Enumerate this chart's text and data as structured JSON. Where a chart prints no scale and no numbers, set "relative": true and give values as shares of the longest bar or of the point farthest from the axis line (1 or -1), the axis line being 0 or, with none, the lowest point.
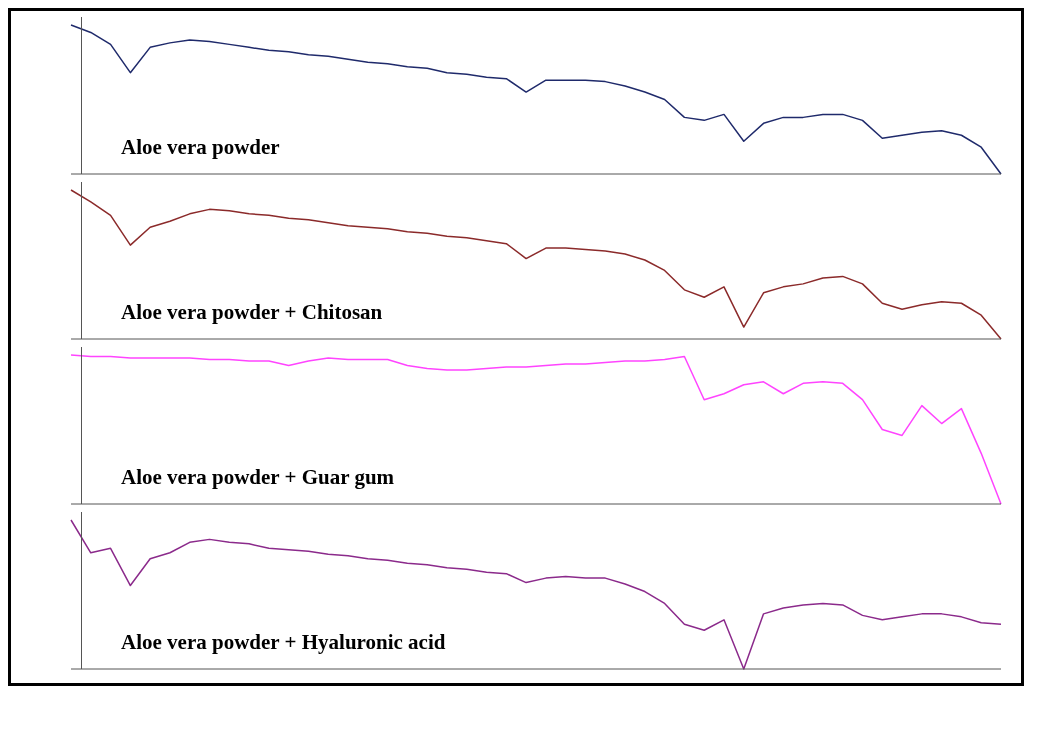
{
  "chart_data": [
    {
      "type": "line",
      "relative": true,
      "legend": false,
      "categories": [
        null,
        null,
        null,
        null,
        null,
        null,
        null,
        null,
        null,
        null,
        null,
        null,
        null,
        null,
        null,
        null,
        null,
        null,
        null,
        null,
        null,
        null,
        null,
        null,
        null,
        null,
        null,
        null,
        null,
        null,
        null,
        null,
        null,
        null,
        null,
        null,
        null,
        null,
        null,
        null,
        null,
        null,
        null,
        null,
        null,
        null,
        null,
        null
      ],
      "series": [
        {
          "name": "Aloe vera powder",
          "color": "#1f2a6b",
          "values": [
            1.0,
            0.95,
            0.87,
            0.68,
            0.85,
            0.88,
            0.9,
            0.89,
            0.87,
            0.85,
            0.83,
            0.82,
            0.8,
            0.79,
            0.77,
            0.75,
            0.74,
            0.72,
            0.71,
            0.68,
            0.67,
            0.65,
            0.64,
            0.55,
            0.63,
            0.63,
            0.63,
            0.62,
            0.59,
            0.55,
            0.5,
            0.38,
            0.36,
            0.4,
            0.22,
            0.34,
            0.38,
            0.38,
            0.4,
            0.4,
            0.36,
            0.24,
            0.26,
            0.28,
            0.29,
            0.26,
            0.18,
            0.0
          ]
        }
      ]
    },
    {
      "type": "line",
      "relative": true,
      "legend": false,
      "categories": [
        null,
        null,
        null,
        null,
        null,
        null,
        null,
        null,
        null,
        null,
        null,
        null,
        null,
        null,
        null,
        null,
        null,
        null,
        null,
        null,
        null,
        null,
        null,
        null,
        null,
        null,
        null,
        null,
        null,
        null,
        null,
        null,
        null,
        null,
        null,
        null,
        null,
        null,
        null,
        null,
        null,
        null,
        null,
        null,
        null,
        null,
        null,
        null
      ],
      "series": [
        {
          "name": "Aloe vera powder + Chitosan",
          "color": "#8b2a2a",
          "values": [
            1.0,
            0.92,
            0.83,
            0.63,
            0.75,
            0.79,
            0.84,
            0.87,
            0.86,
            0.84,
            0.83,
            0.81,
            0.8,
            0.78,
            0.76,
            0.75,
            0.74,
            0.72,
            0.71,
            0.69,
            0.68,
            0.66,
            0.64,
            0.54,
            0.61,
            0.61,
            0.6,
            0.59,
            0.57,
            0.53,
            0.46,
            0.33,
            0.28,
            0.35,
            0.08,
            0.31,
            0.35,
            0.37,
            0.41,
            0.42,
            0.37,
            0.24,
            0.2,
            0.23,
            0.25,
            0.24,
            0.16,
            0.0
          ]
        }
      ]
    },
    {
      "type": "line",
      "relative": true,
      "legend": false,
      "categories": [
        null,
        null,
        null,
        null,
        null,
        null,
        null,
        null,
        null,
        null,
        null,
        null,
        null,
        null,
        null,
        null,
        null,
        null,
        null,
        null,
        null,
        null,
        null,
        null,
        null,
        null,
        null,
        null,
        null,
        null,
        null,
        null,
        null,
        null,
        null,
        null,
        null,
        null,
        null,
        null,
        null,
        null,
        null,
        null,
        null,
        null,
        null,
        null
      ],
      "series": [
        {
          "name": "Aloe vera powder + Guar gum",
          "color": "#ff44ff",
          "values": [
            1.0,
            0.99,
            0.99,
            0.98,
            0.98,
            0.98,
            0.98,
            0.97,
            0.97,
            0.96,
            0.96,
            0.93,
            0.96,
            0.98,
            0.97,
            0.97,
            0.97,
            0.93,
            0.91,
            0.9,
            0.9,
            0.91,
            0.92,
            0.92,
            0.93,
            0.94,
            0.94,
            0.95,
            0.96,
            0.96,
            0.97,
            0.99,
            0.7,
            0.74,
            0.8,
            0.82,
            0.74,
            0.81,
            0.82,
            0.81,
            0.7,
            0.5,
            0.46,
            0.66,
            0.54,
            0.64,
            0.34,
            0.0
          ]
        }
      ]
    },
    {
      "type": "line",
      "relative": true,
      "legend": false,
      "categories": [
        null,
        null,
        null,
        null,
        null,
        null,
        null,
        null,
        null,
        null,
        null,
        null,
        null,
        null,
        null,
        null,
        null,
        null,
        null,
        null,
        null,
        null,
        null,
        null,
        null,
        null,
        null,
        null,
        null,
        null,
        null,
        null,
        null,
        null,
        null,
        null,
        null,
        null,
        null,
        null,
        null,
        null,
        null,
        null,
        null,
        null,
        null,
        null
      ],
      "series": [
        {
          "name": "Aloe vera powder + Hyaluronic acid",
          "color": "#8b2a8b",
          "values": [
            1.0,
            0.78,
            0.81,
            0.56,
            0.74,
            0.78,
            0.85,
            0.87,
            0.85,
            0.84,
            0.81,
            0.8,
            0.79,
            0.77,
            0.76,
            0.74,
            0.73,
            0.71,
            0.7,
            0.68,
            0.67,
            0.65,
            0.64,
            0.58,
            0.61,
            0.62,
            0.61,
            0.61,
            0.57,
            0.52,
            0.44,
            0.3,
            0.26,
            0.33,
            0.0,
            0.37,
            0.41,
            0.43,
            0.44,
            0.43,
            0.36,
            0.33,
            0.35,
            0.37,
            0.37,
            0.35,
            0.31,
            0.3
          ]
        }
      ]
    }
  ]
}
